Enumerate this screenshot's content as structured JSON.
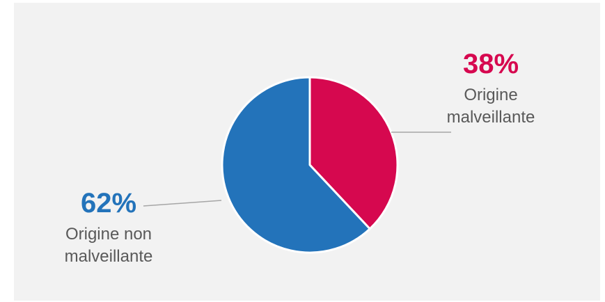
{
  "chart_data": {
    "type": "pie",
    "slices": [
      {
        "label_lines": [
          "Origine",
          "malveillante"
        ],
        "value": 38,
        "value_label": "38%",
        "color": "#d6084f"
      },
      {
        "label_lines": [
          "Origine non",
          "malveillante"
        ],
        "value": 62,
        "value_label": "62%",
        "color": "#2373ba"
      }
    ],
    "start_angle_deg": 0,
    "direction": "clockwise",
    "background_color": "#f2f2f2",
    "leader_line_color": "#a6a6a6",
    "label_text_color": "#595959"
  }
}
